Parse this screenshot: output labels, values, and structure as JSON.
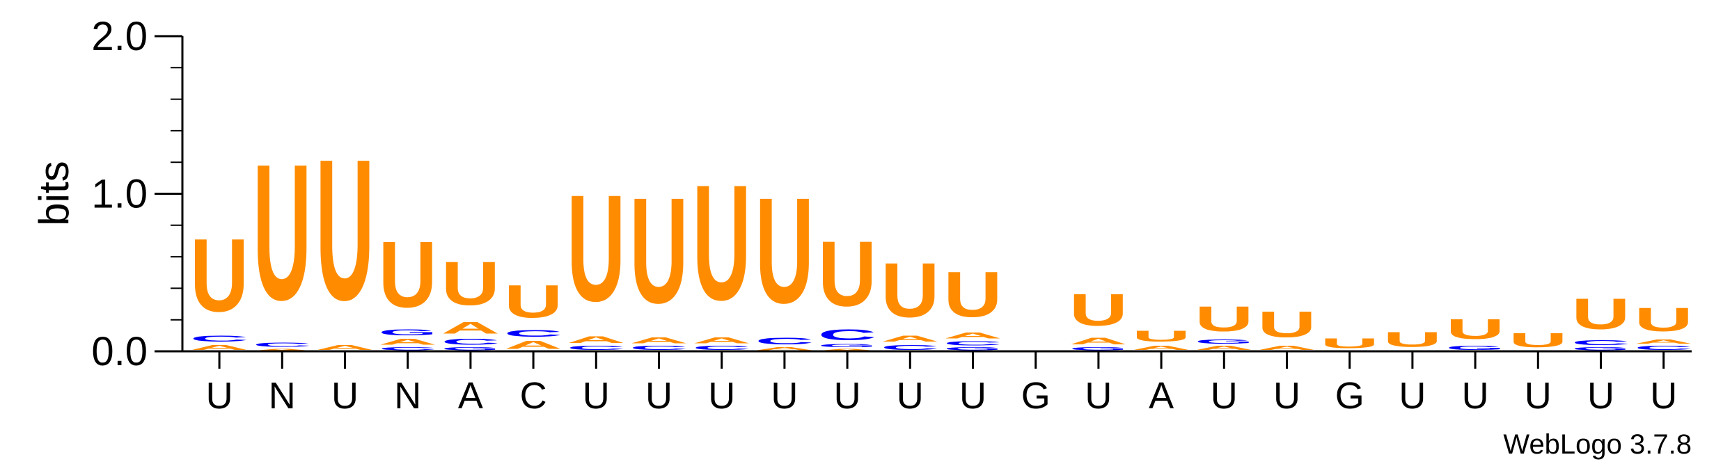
{
  "chart_data": {
    "type": "sequence-logo",
    "ylabel": "bits",
    "ylim": [
      0,
      2.0
    ],
    "yticks": [
      "0.0",
      "1.0",
      "2.0"
    ],
    "consensus": [
      "U",
      "N",
      "U",
      "N",
      "A",
      "C",
      "U",
      "U",
      "U",
      "U",
      "U",
      "U",
      "U",
      "G",
      "U",
      "A",
      "U",
      "U",
      "G",
      "U",
      "U",
      "U",
      "U",
      "U"
    ],
    "positions": [
      [
        {
          "letter": "A",
          "bits": 0.05
        },
        {
          "letter": "C",
          "bits": 0.06
        },
        {
          "letter": "U",
          "bits": 0.74
        }
      ],
      [
        {
          "letter": "A",
          "bits": 0.02
        },
        {
          "letter": "C",
          "bits": 0.04
        },
        {
          "letter": "U",
          "bits": 1.38
        }
      ],
      [
        {
          "letter": "A",
          "bits": 0.05
        },
        {
          "letter": "U",
          "bits": 1.43
        }
      ],
      [
        {
          "letter": "C",
          "bits": 0.03
        },
        {
          "letter": "A",
          "bits": 0.06
        },
        {
          "letter": "G",
          "bits": 0.06
        },
        {
          "letter": "U",
          "bits": 0.67
        }
      ],
      [
        {
          "letter": "G",
          "bits": 0.03
        },
        {
          "letter": "C",
          "bits": 0.06
        },
        {
          "letter": "A",
          "bits": 0.12
        },
        {
          "letter": "U",
          "bits": 0.44
        }
      ],
      [
        {
          "letter": "A",
          "bits": 0.08
        },
        {
          "letter": "C",
          "bits": 0.07
        },
        {
          "letter": "U",
          "bits": 0.33
        }
      ],
      [
        {
          "letter": "C",
          "bits": 0.04
        },
        {
          "letter": "A",
          "bits": 0.07
        },
        {
          "letter": "U",
          "bits": 1.08
        }
      ],
      [
        {
          "letter": "C",
          "bits": 0.04
        },
        {
          "letter": "A",
          "bits": 0.06
        },
        {
          "letter": "U",
          "bits": 1.07
        }
      ],
      [
        {
          "letter": "C",
          "bits": 0.04
        },
        {
          "letter": "A",
          "bits": 0.06
        },
        {
          "letter": "U",
          "bits": 1.17
        }
      ],
      [
        {
          "letter": "A",
          "bits": 0.03
        },
        {
          "letter": "C",
          "bits": 0.07
        },
        {
          "letter": "U",
          "bits": 1.07
        }
      ],
      [
        {
          "letter": "A",
          "bits": 0.02
        },
        {
          "letter": "G",
          "bits": 0.03
        },
        {
          "letter": "C",
          "bits": 0.11
        },
        {
          "letter": "U",
          "bits": 0.66
        }
      ],
      [
        {
          "letter": "C",
          "bits": 0.05
        },
        {
          "letter": "A",
          "bits": 0.06
        },
        {
          "letter": "U",
          "bits": 0.55
        }
      ],
      [
        {
          "letter": "G",
          "bits": 0.03
        },
        {
          "letter": "C",
          "bits": 0.04
        },
        {
          "letter": "A",
          "bits": 0.06
        },
        {
          "letter": "U",
          "bits": 0.46
        }
      ],
      [],
      [
        {
          "letter": "G",
          "bits": 0.03
        },
        {
          "letter": "A",
          "bits": 0.07
        },
        {
          "letter": "U",
          "bits": 0.32
        }
      ],
      [
        {
          "letter": "A",
          "bits": 0.04
        },
        {
          "letter": "U",
          "bits": 0.11
        }
      ],
      [
        {
          "letter": "A",
          "bits": 0.04
        },
        {
          "letter": "G",
          "bits": 0.04
        },
        {
          "letter": "U",
          "bits": 0.25
        }
      ],
      [
        {
          "letter": "A",
          "bits": 0.04
        },
        {
          "letter": "U",
          "bits": 0.26
        }
      ],
      [
        {
          "letter": "U",
          "bits": 0.1
        }
      ],
      [
        {
          "letter": "U",
          "bits": 0.15
        }
      ],
      [
        {
          "letter": "G",
          "bits": 0.04
        },
        {
          "letter": "U",
          "bits": 0.2
        }
      ],
      [
        {
          "letter": "U",
          "bits": 0.14
        }
      ],
      [
        {
          "letter": "G",
          "bits": 0.03
        },
        {
          "letter": "C",
          "bits": 0.05
        },
        {
          "letter": "U",
          "bits": 0.31
        }
      ],
      [
        {
          "letter": "C",
          "bits": 0.04
        },
        {
          "letter": "A",
          "bits": 0.04
        },
        {
          "letter": "U",
          "bits": 0.24
        }
      ]
    ]
  },
  "colors": {
    "U": "#ff8c00",
    "A": "#ff8c00",
    "C": "#0000ff",
    "G": "#0000ff",
    "axis": "#000000"
  },
  "footer": "WebLogo 3.7.8"
}
